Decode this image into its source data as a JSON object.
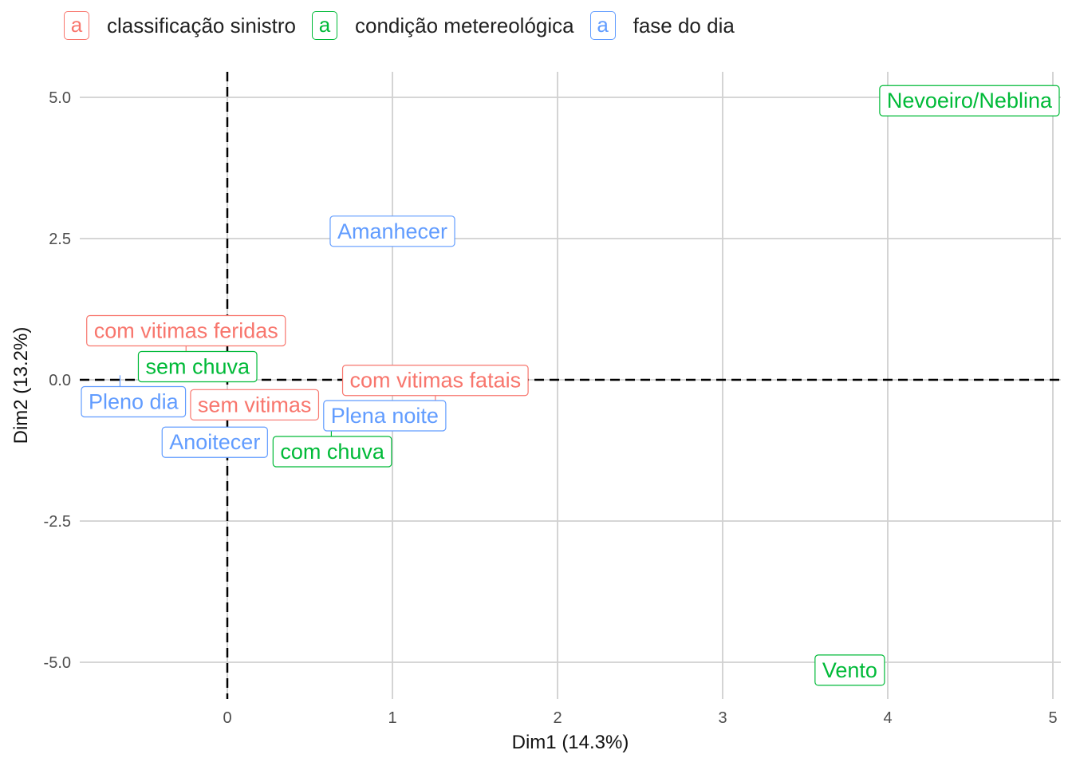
{
  "legend": {
    "title": "",
    "key_glyph": "a",
    "groups": [
      {
        "name": "classificação sinistro",
        "color": "#F8766D"
      },
      {
        "name": "condição metereológica",
        "color": "#00BA38"
      },
      {
        "name": "fase do dia",
        "color": "#619CFF"
      }
    ]
  },
  "chart_data": {
    "type": "scatter",
    "title": "",
    "xlabel": "Dim1 (14.3%)",
    "ylabel": "Dim2 (13.2%)",
    "xlim": [
      -0.9,
      5.05
    ],
    "ylim": [
      -5.65,
      5.45
    ],
    "xticks": [
      0,
      1,
      2,
      3,
      4,
      5
    ],
    "xtick_labels": [
      "0",
      "1",
      "2",
      "3",
      "4",
      "5"
    ],
    "yticks": [
      5.0,
      2.5,
      0.0,
      -2.5,
      -5.0
    ],
    "ytick_labels": [
      "5.0",
      "2.5",
      "0.0",
      "-2.5",
      "-5.0"
    ],
    "grid": true,
    "reference_lines": {
      "x": 0,
      "y": 0,
      "style": "dashed"
    },
    "legend_position": "top-left",
    "points": [
      {
        "label": "com vitimas feridas",
        "group": 0,
        "x": -0.25,
        "y": 0.21
      },
      {
        "label": "sem vitimas",
        "group": 0,
        "x": 0.07,
        "y": -0.44
      },
      {
        "label": "com vitimas fatais",
        "group": 0,
        "x": 1.26,
        "y": -0.38
      },
      {
        "label": "Pleno dia",
        "group": 2,
        "x": -0.65,
        "y": 0.08
      },
      {
        "label": "Amanhecer",
        "group": 2,
        "x": 1.0,
        "y": 2.63
      },
      {
        "label": "Plena noite",
        "group": 2,
        "x": 0.95,
        "y": -0.49
      },
      {
        "label": "Anoitecer",
        "group": 2,
        "x": -0.07,
        "y": -0.95
      },
      {
        "label": "sem chuva",
        "group": 1,
        "x": -0.18,
        "y": 0.11
      },
      {
        "label": "com chuva",
        "group": 1,
        "x": 0.63,
        "y": -0.89
      },
      {
        "label": "Nevoeiro/Neblina",
        "group": 1,
        "x": 4.75,
        "y": 4.94
      },
      {
        "label": "Vento",
        "group": 1,
        "x": 3.77,
        "y": -5.14
      }
    ]
  }
}
